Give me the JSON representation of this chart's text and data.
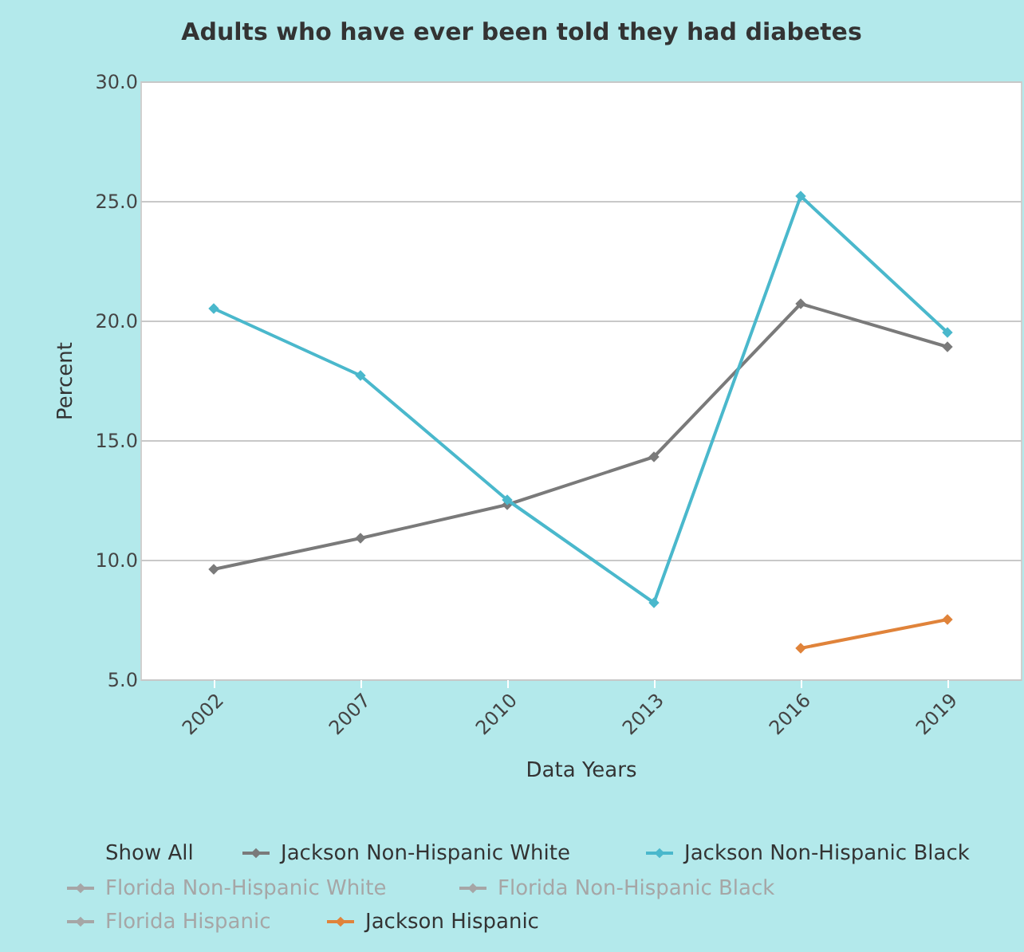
{
  "chart_data": {
    "type": "line",
    "title": "Adults who have ever been told they had diabetes",
    "xlabel": "Data Years",
    "ylabel": "Percent",
    "categories": [
      "2002",
      "2007",
      "2010",
      "2013",
      "2016",
      "2019"
    ],
    "series": [
      {
        "name": "Jackson Non-Hispanic White",
        "color": "#7a7a7a",
        "values": [
          9.6,
          10.9,
          12.3,
          14.3,
          20.7,
          18.9
        ]
      },
      {
        "name": "Jackson Non-Hispanic Black",
        "color": "#4ab8cc",
        "values": [
          20.5,
          17.7,
          12.5,
          8.2,
          25.2,
          19.5
        ]
      },
      {
        "name": "Florida Non-Hispanic White",
        "color": "#a6a6a6",
        "values": [
          null,
          null,
          null,
          null,
          null,
          null
        ]
      },
      {
        "name": "Florida Non-Hispanic Black",
        "color": "#a6a6a6",
        "values": [
          null,
          null,
          null,
          null,
          null,
          null
        ]
      },
      {
        "name": "Florida Hispanic",
        "color": "#a6a6a6",
        "values": [
          null,
          null,
          null,
          null,
          null,
          null
        ]
      },
      {
        "name": "Jackson Hispanic",
        "color": "#e0833a",
        "values": [
          null,
          null,
          null,
          null,
          6.3,
          7.5
        ]
      }
    ],
    "annotations": [
      "Show All"
    ],
    "ylim": [
      5,
      30
    ],
    "yticks": [
      {
        "value": 5,
        "label": "5.0"
      },
      {
        "value": 10,
        "label": "10.0"
      },
      {
        "value": 15,
        "label": "15.0"
      },
      {
        "value": 20,
        "label": "20.0"
      },
      {
        "value": 25,
        "label": "25.0"
      },
      {
        "value": 30,
        "label": "30.0"
      }
    ],
    "grid": "y",
    "legend": "bottom",
    "marker": "diamond",
    "line_style": "solid"
  }
}
